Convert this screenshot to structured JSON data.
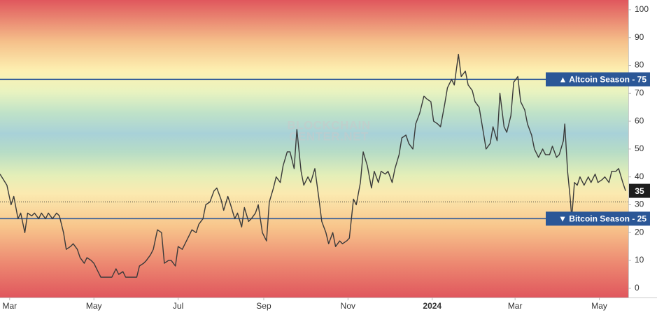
{
  "chart_data": {
    "type": "line",
    "watermark": [
      "BLOCKCHAIN",
      "CENTER.NET"
    ],
    "color": "#3a3a3a",
    "x": [
      0,
      5,
      8,
      10,
      13,
      15,
      18,
      20,
      23,
      25,
      28,
      30,
      33,
      35,
      38,
      41,
      43,
      46,
      48,
      51,
      53,
      56,
      58,
      61,
      63,
      66,
      68,
      71,
      73,
      76,
      79,
      81,
      84,
      86,
      89,
      91,
      94,
      96,
      99,
      101,
      104,
      106,
      109,
      111,
      114,
      117,
      119,
      122,
      124,
      127,
      129,
      132,
      134,
      137,
      139,
      142,
      144,
      147,
      149,
      152,
      155,
      157,
      160,
      162,
      165,
      167,
      170,
      172,
      175,
      177,
      180,
      182,
      185,
      187,
      190,
      193,
      195,
      198,
      200,
      203,
      205,
      208,
      210,
      213,
      215,
      218,
      220,
      223,
      225,
      228,
      231,
      233,
      236,
      238,
      241,
      243,
      246,
      248,
      251,
      253,
      256,
      258,
      261,
      263,
      266,
      269,
      271,
      274,
      276,
      279,
      281,
      284,
      286,
      289,
      291,
      294,
      296,
      299,
      301,
      304,
      307,
      309,
      312,
      314,
      317,
      319,
      322,
      324,
      327,
      329,
      332,
      334,
      337,
      339,
      342,
      344,
      347,
      350,
      352,
      355,
      357,
      360,
      362,
      365,
      367,
      370,
      372,
      375,
      377,
      380,
      382,
      385,
      387,
      390,
      393,
      395,
      398,
      400,
      403,
      405,
      408,
      409,
      411,
      413,
      414,
      416,
      418,
      420,
      423,
      426,
      428,
      431,
      433,
      436,
      438,
      441,
      443,
      446,
      448,
      451,
      453
    ],
    "values": [
      41,
      37,
      30,
      33,
      25,
      27,
      20,
      27,
      26,
      27,
      25,
      27,
      25,
      27,
      25,
      27,
      26,
      20,
      14,
      15,
      16,
      14,
      11,
      9,
      11,
      10,
      9,
      6,
      4,
      4,
      4,
      4,
      7,
      5,
      6,
      4,
      4,
      4,
      4,
      8,
      9,
      10,
      12,
      14,
      21,
      20,
      9,
      10,
      10,
      8,
      15,
      14,
      16,
      19,
      21,
      20,
      23,
      25,
      30,
      31,
      35,
      36,
      32,
      28,
      33,
      30,
      25,
      27,
      22,
      29,
      24,
      25,
      27,
      30,
      20,
      17,
      31,
      36,
      40,
      38,
      44,
      49,
      49,
      43,
      57,
      42,
      37,
      40,
      38,
      43,
      32,
      24,
      20,
      16,
      20,
      15,
      17,
      16,
      17,
      18,
      32,
      30,
      38,
      49,
      44,
      36,
      42,
      38,
      42,
      41,
      42,
      38,
      43,
      48,
      54,
      55,
      52,
      50,
      59,
      63,
      69,
      68,
      67,
      60,
      59,
      58,
      66,
      72,
      75,
      73,
      84,
      76,
      78,
      73,
      71,
      67,
      65,
      56,
      50,
      52,
      58,
      53,
      70,
      58,
      56,
      62,
      74,
      76,
      67,
      64,
      59,
      55,
      50,
      47,
      50,
      48,
      48,
      51,
      47,
      48,
      53,
      59,
      42,
      32,
      25,
      38,
      37,
      40,
      37,
      40,
      38,
      41,
      38,
      39,
      40,
      38,
      42,
      42,
      43,
      38,
      35
    ],
    "last_value_label": "35",
    "xlim": [
      0,
      455
    ],
    "xticks": [
      {
        "value": 7,
        "label": "Mar"
      },
      {
        "value": 68,
        "label": "May"
      },
      {
        "value": 129,
        "label": "Jul"
      },
      {
        "value": 191,
        "label": "Sep"
      },
      {
        "value": 252,
        "label": "Nov"
      },
      {
        "value": 313,
        "label": "2024"
      },
      {
        "value": 373,
        "label": "Mar"
      },
      {
        "value": 434,
        "label": "May"
      }
    ],
    "ylim": [
      -3.3,
      103.5
    ],
    "yticks": [
      0,
      10,
      20,
      30,
      40,
      50,
      60,
      70,
      80,
      90,
      100
    ],
    "annotations": [
      {
        "value": 75,
        "label": "▲ Altcoin Season - 75",
        "color": "#2b5797"
      },
      {
        "value": 25,
        "label": "▼ Bitcoin Season - 25",
        "color": "#2b5797"
      }
    ],
    "dotted_line": 31
  }
}
